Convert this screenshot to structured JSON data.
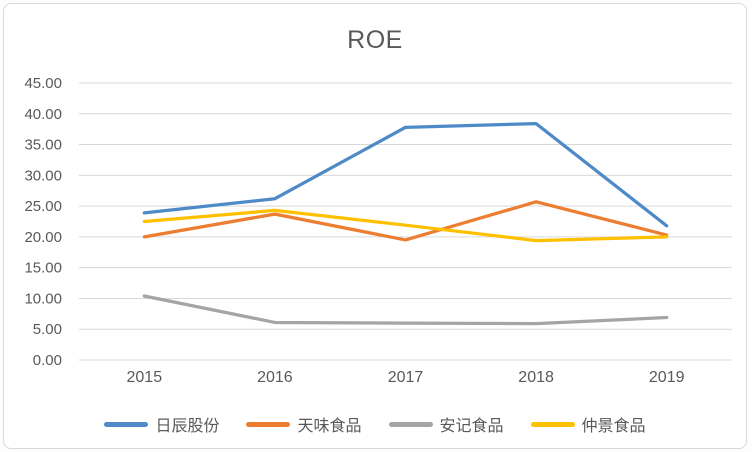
{
  "chart_data": {
    "type": "line",
    "title": "ROE",
    "x": [
      "2015",
      "2016",
      "2017",
      "2018",
      "2019"
    ],
    "series": [
      {
        "name": "日辰股份",
        "color": "#4E89C8",
        "values": [
          23.9,
          26.2,
          37.8,
          38.4,
          21.8
        ]
      },
      {
        "name": "天味食品",
        "color": "#ED7D31",
        "values": [
          20.0,
          23.7,
          19.5,
          25.7,
          20.3
        ]
      },
      {
        "name": "安记食品",
        "color": "#A5A5A5",
        "values": [
          10.4,
          6.1,
          6.0,
          5.9,
          6.9
        ]
      },
      {
        "name": "仲景食品",
        "color": "#FFC000",
        "values": [
          22.5,
          24.3,
          21.9,
          19.4,
          20.0
        ]
      }
    ],
    "ylim": [
      0,
      45
    ],
    "y_tick_step": 5,
    "y_tick_labels": [
      "0.00",
      "5.00",
      "10.00",
      "15.00",
      "20.00",
      "25.00",
      "30.00",
      "35.00",
      "40.00",
      "45.00"
    ],
    "grid": true,
    "legend_position": "bottom"
  },
  "styles": {
    "grid_color": "#D9D9D9",
    "axis_text_color": "#595959",
    "title_color": "#595959",
    "background": "#FFFFFF",
    "border_color": "#D9D9D9"
  }
}
